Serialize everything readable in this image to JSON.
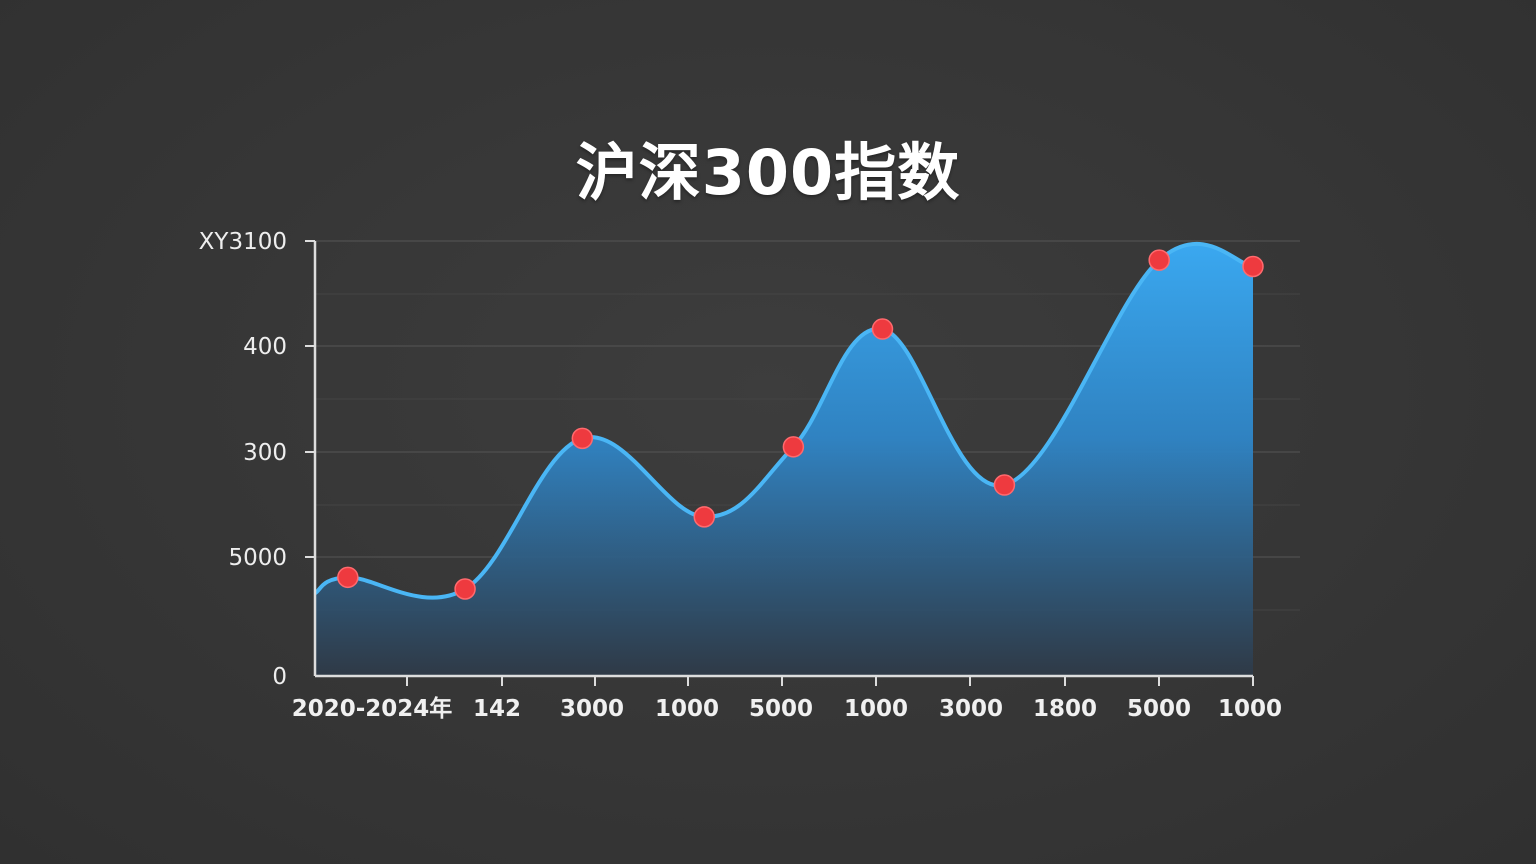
{
  "chart_data": {
    "type": "area",
    "title": "沪深300指数",
    "xlabel": "",
    "ylabel": "",
    "categories": [
      "2020-2024年",
      "142",
      "3000",
      "1000",
      "5000",
      "1000",
      "3000",
      "1800",
      "5000",
      "1000"
    ],
    "y_tick_labels": [
      "XY3100",
      "400",
      "300",
      "5000",
      "0"
    ],
    "points": [
      {
        "x": 0.35,
        "y": 0.93
      },
      {
        "x": 1.6,
        "y": 0.82
      },
      {
        "x": 2.85,
        "y": 2.24
      },
      {
        "x": 4.15,
        "y": 1.5
      },
      {
        "x": 5.1,
        "y": 2.16
      },
      {
        "x": 6.05,
        "y": 3.27
      },
      {
        "x": 7.35,
        "y": 1.8
      },
      {
        "x": 9.0,
        "y": 3.92
      },
      {
        "x": 10.0,
        "y": 3.86
      }
    ],
    "area_start": {
      "x": 0.0,
      "y": 0.78
    },
    "area_end_x": 10.0,
    "xlim": [
      0,
      10
    ],
    "ylim": [
      0,
      4.1
    ],
    "grid": true,
    "colors": {
      "area_top": "#3aa8f0",
      "area_bottom": "#2e3a48",
      "line": "#4ab6f5",
      "marker": "#ee3a3f",
      "axis": "#dddddd",
      "grid": "#4c4c4c"
    }
  }
}
